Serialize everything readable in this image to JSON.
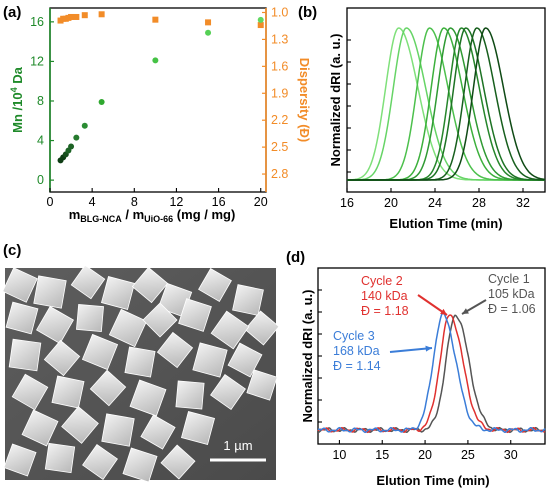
{
  "panels": {
    "a": {
      "label": "(a)"
    },
    "b": {
      "label": "(b)"
    },
    "c": {
      "label": "(c)",
      "scale_bar": "1 µm"
    },
    "d": {
      "label": "(d)"
    }
  },
  "colors": {
    "orange": "#f28c28",
    "green_dark": "#1a6b2a",
    "green_mid": "#2fa82f",
    "green_light": "#5cd65c",
    "blue": "#3b7dd8",
    "red": "#e0312f",
    "gray": "#555555"
  },
  "chart_data": [
    {
      "id": "a",
      "type": "scatter",
      "xlabel": {
        "main": "m",
        "sub1": "BLG-NCA",
        "mid": " / m",
        "sub2": "UiO-66",
        "tail": " (mg / mg)"
      },
      "ylabel_left": {
        "main": "Mn /10",
        "sup": "4",
        "tail": " Da"
      },
      "ylabel_right": "Dispersity (Đ)",
      "xlim": [
        0,
        20.5
      ],
      "xticks": [
        0,
        4,
        8,
        12,
        16,
        20
      ],
      "ylim_left": [
        -1.2,
        17.4
      ],
      "yticks_left": [
        0,
        4,
        8,
        12,
        16
      ],
      "ylim_right": [
        3.0,
        0.95
      ],
      "yticks_right": [
        "1.0",
        "1.3",
        "1.6",
        "1.9",
        "2.2",
        "2.5",
        "2.8"
      ],
      "series": [
        {
          "axis": "left",
          "marker": "circle",
          "x": [
            1.0,
            1.25,
            1.5,
            1.75,
            2.0,
            2.5,
            3.3,
            4.9,
            10.0,
            15.0,
            20.0
          ],
          "y": [
            2.0,
            2.3,
            2.6,
            3.0,
            3.4,
            4.3,
            5.5,
            7.9,
            12.1,
            14.9,
            16.2
          ],
          "colors": [
            "#0e3d14",
            "#0e3d14",
            "#174f1d",
            "#1d6325",
            "#1d6325",
            "#267a2e",
            "#2a8c33",
            "#2fa82f",
            "#45c245",
            "#55d055",
            "#60d860"
          ]
        },
        {
          "axis": "right",
          "marker": "square",
          "x": [
            1.0,
            1.25,
            1.5,
            1.75,
            2.0,
            2.5,
            3.3,
            4.9,
            10.0,
            15.0,
            20.0
          ],
          "y": [
            1.09,
            1.07,
            1.07,
            1.06,
            1.05,
            1.05,
            1.03,
            1.02,
            1.08,
            1.11,
            1.14
          ],
          "color": "#f28c28"
        }
      ]
    },
    {
      "id": "b",
      "type": "line",
      "xlabel": "Elution Time (min)",
      "ylabel": "Normalized dRI (a. u.)",
      "xlim": [
        16,
        34
      ],
      "xticks": [
        16,
        20,
        24,
        28,
        32
      ],
      "peak_times": [
        20.7,
        21.4,
        23.5,
        24.8,
        25.4,
        26.4,
        26.8,
        27.8,
        28.6
      ],
      "widths": [
        1.4,
        1.4,
        1.35,
        1.35,
        1.35,
        1.3,
        1.3,
        1.3,
        1.3
      ],
      "colors": [
        "#7fe07a",
        "#66d466",
        "#4cc04c",
        "#3cb03c",
        "#2f9a33",
        "#26862b",
        "#1d7324",
        "#175f1d",
        "#0f4a15"
      ]
    },
    {
      "id": "d",
      "type": "line",
      "xlabel": "Elution Time (min)",
      "ylabel": "Normalized dRI (a. u.)",
      "xlim": [
        7.5,
        34
      ],
      "xticks": [
        10,
        15,
        20,
        25,
        30
      ],
      "series": [
        {
          "name": "Cycle 1",
          "mw": "105 kDa",
          "dispersity": "Đ = 1.06",
          "peak": 23.6,
          "color": "#555555"
        },
        {
          "name": "Cycle 2",
          "mw": "140 kDa",
          "dispersity": "Đ = 1.18",
          "peak": 22.9,
          "color": "#e0312f"
        },
        {
          "name": "Cycle 3",
          "mw": "168 kDa",
          "dispersity": "Đ = 1.14",
          "peak": 22.1,
          "color": "#3b7dd8"
        }
      ]
    }
  ]
}
